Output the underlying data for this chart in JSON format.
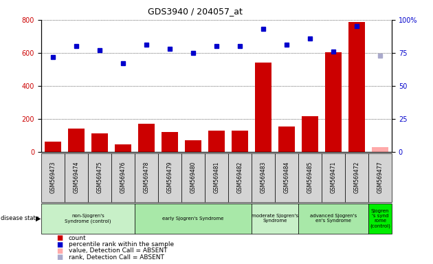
{
  "title": "GDS3940 / 204057_at",
  "samples": [
    "GSM569473",
    "GSM569474",
    "GSM569475",
    "GSM569476",
    "GSM569478",
    "GSM569479",
    "GSM569480",
    "GSM569481",
    "GSM569482",
    "GSM569483",
    "GSM569484",
    "GSM569485",
    "GSM569471",
    "GSM569472",
    "GSM569477"
  ],
  "counts": [
    60,
    140,
    110,
    45,
    170,
    120,
    70,
    130,
    130,
    540,
    155,
    215,
    605,
    785,
    30
  ],
  "percentile_ranks": [
    72,
    80,
    77,
    67,
    81,
    78,
    75,
    80,
    80,
    93,
    81,
    86,
    76,
    95,
    73
  ],
  "absent_indices": [
    14
  ],
  "groups": [
    {
      "label": "non-Sjogren's\nSyndrome (control)",
      "start": 0,
      "end": 4,
      "color": "#c8f0c8"
    },
    {
      "label": "early Sjogren's Syndrome",
      "start": 4,
      "end": 9,
      "color": "#a8e8a8"
    },
    {
      "label": "moderate Sjogren's\nSyndrome",
      "start": 9,
      "end": 11,
      "color": "#c8f0c8"
    },
    {
      "label": "advanced Sjogren's\nen's Syndrome",
      "start": 11,
      "end": 14,
      "color": "#a8e8a8"
    },
    {
      "label": "Sjogren\n's synd\nrome\n(control)",
      "start": 14,
      "end": 15,
      "color": "#00ee00"
    }
  ],
  "ylim_left": [
    0,
    800
  ],
  "ylim_right": [
    0,
    100
  ],
  "yticks_left": [
    0,
    200,
    400,
    600,
    800
  ],
  "yticks_right": [
    0,
    25,
    50,
    75,
    100
  ],
  "ytick_labels_right": [
    "0",
    "25",
    "50",
    "75",
    "100%"
  ],
  "bar_color": "#cc0000",
  "absent_bar_color": "#ffaaaa",
  "dot_color": "#0000cc",
  "absent_dot_color": "#aaaacc",
  "grid_color": "#000000",
  "bg_color": "#ffffff",
  "tick_label_color_left": "#cc0000",
  "tick_label_color_right": "#0000cc",
  "sample_box_color": "#d4d4d4"
}
